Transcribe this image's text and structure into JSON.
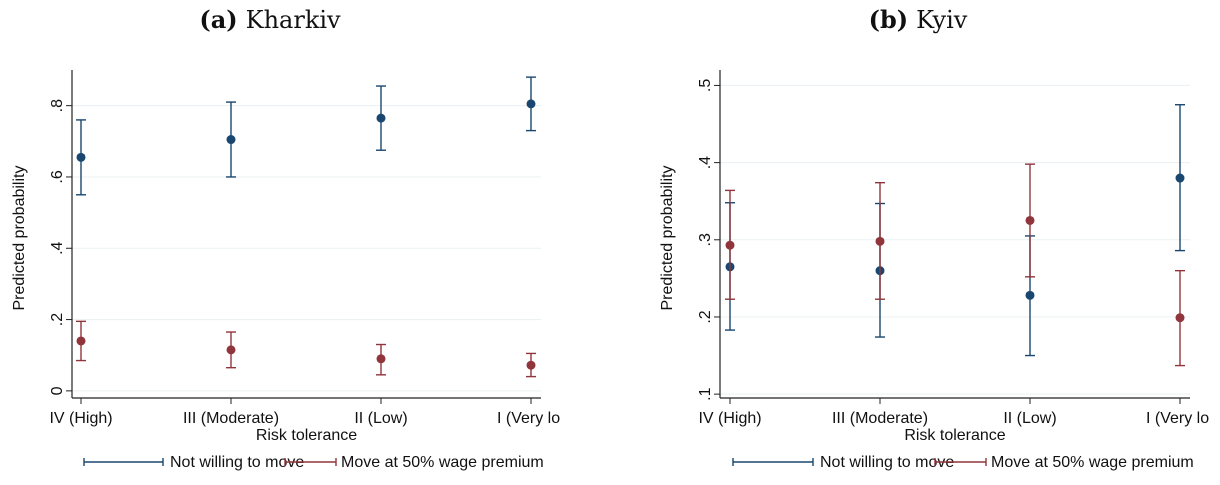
{
  "chart_data": [
    {
      "type": "scatter",
      "panel_label": "(a)",
      "title": "Kharkiv",
      "xlabel": "Risk tolerance",
      "ylabel": "Predicted probability",
      "categories": [
        "IV (High)",
        "III (Moderate)",
        "II (Low)",
        "I (Very lo"
      ],
      "ylim": [
        -0.02,
        0.9
      ],
      "yticks": [
        0,
        0.2,
        0.4,
        0.6,
        0.8
      ],
      "ytick_labels": [
        "0",
        ".2",
        ".4",
        ".6",
        ".8"
      ],
      "grid": true,
      "legend_position": "bottom",
      "series": [
        {
          "name": "Not willing to move",
          "color": "#1a476f",
          "values": [
            0.655,
            0.705,
            0.765,
            0.805
          ],
          "lower": [
            0.55,
            0.6,
            0.675,
            0.73
          ],
          "upper": [
            0.76,
            0.81,
            0.855,
            0.88
          ]
        },
        {
          "name": "Move at 50% wage premium",
          "color": "#90353b",
          "values": [
            0.14,
            0.115,
            0.09,
            0.072
          ],
          "lower": [
            0.085,
            0.065,
            0.045,
            0.04
          ],
          "upper": [
            0.195,
            0.165,
            0.13,
            0.105
          ]
        }
      ]
    },
    {
      "type": "scatter",
      "panel_label": "(b)",
      "title": "Kyiv",
      "xlabel": "Risk tolerance",
      "ylabel": "Predicted probability",
      "categories": [
        "IV (High)",
        "III (Moderate)",
        "II (Low)",
        "I (Very lo"
      ],
      "ylim": [
        0.095,
        0.52
      ],
      "yticks": [
        0.1,
        0.2,
        0.3,
        0.4,
        0.5
      ],
      "ytick_labels": [
        ".1",
        ".2",
        ".3",
        ".4",
        ".5"
      ],
      "grid": true,
      "legend_position": "bottom",
      "series": [
        {
          "name": "Not willing to move",
          "color": "#1a476f",
          "values": [
            0.265,
            0.26,
            0.228,
            0.38
          ],
          "lower": [
            0.183,
            0.174,
            0.15,
            0.286
          ],
          "upper": [
            0.348,
            0.347,
            0.305,
            0.475
          ]
        },
        {
          "name": "Move at 50% wage premium",
          "color": "#90353b",
          "values": [
            0.293,
            0.298,
            0.325,
            0.199
          ],
          "lower": [
            0.223,
            0.223,
            0.252,
            0.137
          ],
          "upper": [
            0.364,
            0.374,
            0.398,
            0.26
          ]
        }
      ]
    }
  ]
}
